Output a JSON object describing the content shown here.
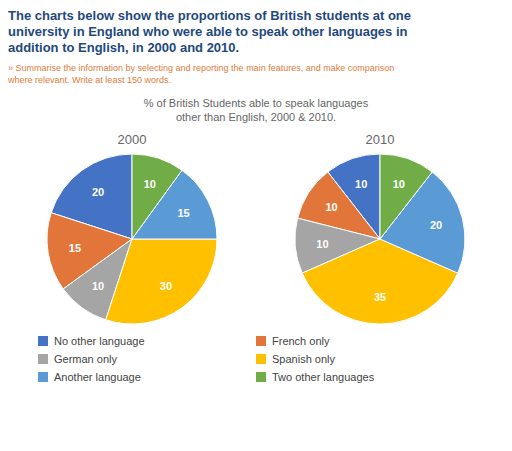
{
  "title": "The charts below show the proportions of British students at one\nuniversity in England who were able to speak other languages in\naddition to English, in 2000 and 2010.",
  "subtitle": "» Summarise the information by selecting and reporting the main features, and make comparison\nwhere relevant. Write at least 150 words.",
  "annotations": [
    "% of British Students able to speak languages\nother than English, 2000 & 2010."
  ],
  "legend": "bottom",
  "chart_data": [
    {
      "type": "pie",
      "title": "2000",
      "categories": [
        "No other language",
        "French only",
        "German only",
        "Spanish only",
        "Another language",
        "Two other languages"
      ],
      "values": [
        20,
        15,
        10,
        30,
        15,
        10
      ],
      "colors": [
        "#4472C4",
        "#E2763A",
        "#A5A5A5",
        "#FFC000",
        "#5B9BD5",
        "#70AD47"
      ],
      "data_labels": true
    },
    {
      "type": "pie",
      "title": "2010",
      "categories": [
        "No other language",
        "French only",
        "German only",
        "Spanish only",
        "Another language",
        "Two other languages"
      ],
      "values": [
        10,
        10,
        10,
        35,
        20,
        10
      ],
      "colors": [
        "#4472C4",
        "#E2763A",
        "#A5A5A5",
        "#FFC000",
        "#5B9BD5",
        "#70AD47"
      ],
      "data_labels": true
    }
  ]
}
